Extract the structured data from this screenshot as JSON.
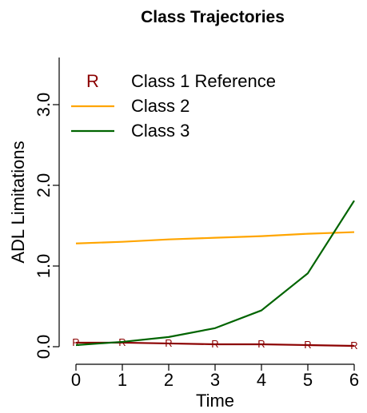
{
  "chart_data": {
    "type": "line",
    "title": "Class Trajectories",
    "xlabel": "Time",
    "ylabel": "ADL Limitations",
    "xlim": [
      0,
      6
    ],
    "ylim": [
      0,
      3.6
    ],
    "x_ticks": [
      "0",
      "1",
      "2",
      "3",
      "4",
      "5",
      "6"
    ],
    "y_ticks": [
      {
        "value": 0.0,
        "label": "0.0"
      },
      {
        "value": 1.0,
        "label": "1.0"
      },
      {
        "value": 2.0,
        "label": "2.0"
      },
      {
        "value": 3.0,
        "label": "3.0"
      }
    ],
    "grid": false,
    "legend_position": "top",
    "x": [
      0,
      1,
      2,
      3,
      4,
      5,
      6
    ],
    "series": [
      {
        "name": "Class 1 Reference",
        "color": "#8b0000",
        "marker": "R",
        "values": [
          0.05,
          0.05,
          0.04,
          0.03,
          0.03,
          0.02,
          0.01
        ]
      },
      {
        "name": "Class 2",
        "color": "#ffa500",
        "values": [
          1.28,
          1.3,
          1.33,
          1.35,
          1.37,
          1.4,
          1.42
        ]
      },
      {
        "name": "Class 3",
        "color": "#006400",
        "values": [
          0.02,
          0.06,
          0.12,
          0.23,
          0.45,
          0.91,
          1.81
        ]
      }
    ]
  }
}
